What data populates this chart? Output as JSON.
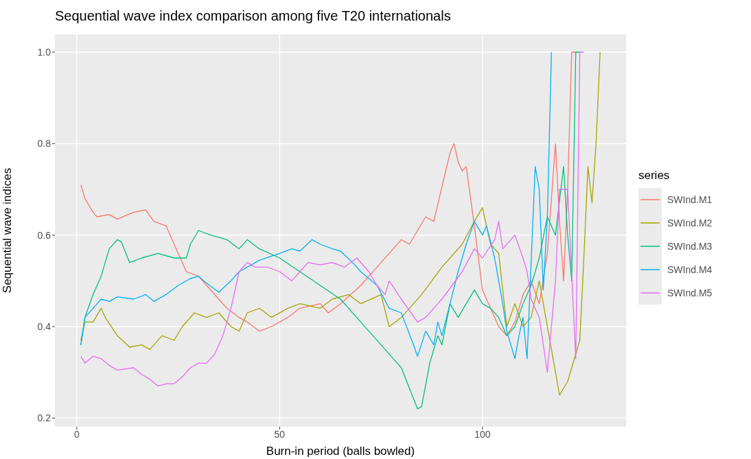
{
  "chart_data": {
    "type": "line",
    "title": "Sequential wave index comparison among five T20 internationals",
    "xlabel": "Burn-in period (balls bowled)",
    "ylabel": "Sequential wave indices",
    "legend_title": "series",
    "xlim": [
      -5.4,
      135.4
    ],
    "ylim": [
      0.181,
      1.039
    ],
    "xticks": [
      0,
      50,
      100
    ],
    "yticks": [
      {
        "value": 0.2,
        "label": "0.2"
      },
      {
        "value": 0.4,
        "label": "0.4"
      },
      {
        "value": 0.6,
        "label": "0.6"
      },
      {
        "value": 0.8,
        "label": "0.8"
      },
      {
        "value": 1.0,
        "label": "1.0"
      }
    ],
    "grid": true,
    "legend": "right",
    "marker": "none",
    "line_style": "solid",
    "series": [
      {
        "name": "SWInd.M1",
        "color": "#f8766d",
        "x": [
          1,
          2,
          4,
          5,
          8,
          10,
          14,
          17,
          19,
          22,
          24,
          27,
          30,
          32,
          35,
          37,
          40,
          42,
          45,
          48,
          52,
          55,
          60,
          62,
          65,
          70,
          75,
          80,
          82,
          86,
          88,
          92,
          93,
          94,
          95,
          96,
          98,
          100,
          102,
          104,
          106,
          108,
          110,
          112,
          114,
          116,
          117,
          118,
          119,
          120,
          121,
          122,
          123
        ],
        "values": [
          0.71,
          0.68,
          0.65,
          0.64,
          0.645,
          0.635,
          0.65,
          0.655,
          0.63,
          0.62,
          0.58,
          0.52,
          0.51,
          0.49,
          0.46,
          0.44,
          0.42,
          0.41,
          0.39,
          0.4,
          0.42,
          0.44,
          0.45,
          0.43,
          0.45,
          0.49,
          0.54,
          0.59,
          0.58,
          0.64,
          0.63,
          0.78,
          0.8,
          0.76,
          0.74,
          0.75,
          0.62,
          0.48,
          0.44,
          0.4,
          0.38,
          0.41,
          0.47,
          0.5,
          0.45,
          0.56,
          0.68,
          0.8,
          0.63,
          0.5,
          0.7,
          1.0,
          1.0
        ]
      },
      {
        "name": "SWInd.M2",
        "color": "#a3a500",
        "x": [
          1,
          2,
          4,
          6,
          7,
          10,
          13,
          16,
          18,
          21,
          24,
          26,
          29,
          32,
          35,
          38,
          40,
          42,
          45,
          48,
          52,
          55,
          60,
          63,
          67,
          70,
          75,
          77,
          80,
          85,
          90,
          95,
          98,
          100,
          102,
          104,
          106,
          108,
          110,
          112,
          114,
          116,
          118,
          119,
          121,
          124,
          125,
          126,
          127,
          128,
          129
        ],
        "values": [
          0.37,
          0.41,
          0.41,
          0.44,
          0.42,
          0.38,
          0.355,
          0.36,
          0.35,
          0.38,
          0.37,
          0.4,
          0.43,
          0.42,
          0.43,
          0.4,
          0.39,
          0.43,
          0.44,
          0.42,
          0.44,
          0.45,
          0.44,
          0.46,
          0.47,
          0.45,
          0.47,
          0.4,
          0.42,
          0.47,
          0.53,
          0.58,
          0.63,
          0.66,
          0.58,
          0.56,
          0.4,
          0.45,
          0.4,
          0.42,
          0.5,
          0.4,
          0.3,
          0.25,
          0.28,
          0.37,
          0.55,
          0.75,
          0.67,
          0.8,
          1.0
        ]
      },
      {
        "name": "SWInd.M3",
        "color": "#00bf7d",
        "x": [
          1,
          2,
          4,
          6,
          8,
          10,
          11,
          13,
          16,
          20,
          24,
          27,
          28,
          30,
          33,
          37,
          40,
          42,
          45,
          50,
          55,
          60,
          65,
          70,
          75,
          78,
          80,
          84,
          85,
          87,
          89,
          90,
          92,
          94,
          98,
          100,
          102,
          104,
          106,
          108,
          110,
          112,
          114,
          116,
          118,
          120,
          121,
          122,
          123,
          124
        ],
        "values": [
          0.36,
          0.42,
          0.47,
          0.51,
          0.57,
          0.59,
          0.585,
          0.54,
          0.55,
          0.56,
          0.55,
          0.55,
          0.58,
          0.61,
          0.6,
          0.59,
          0.57,
          0.59,
          0.57,
          0.55,
          0.52,
          0.49,
          0.46,
          0.41,
          0.36,
          0.33,
          0.31,
          0.22,
          0.225,
          0.32,
          0.38,
          0.36,
          0.45,
          0.42,
          0.48,
          0.45,
          0.44,
          0.42,
          0.38,
          0.4,
          0.45,
          0.49,
          0.55,
          0.64,
          0.6,
          0.75,
          0.6,
          0.5,
          1.0,
          1.0
        ]
      },
      {
        "name": "SWInd.M4",
        "color": "#00b0f6",
        "x": [
          1,
          2,
          4,
          6,
          8,
          10,
          14,
          17,
          19,
          22,
          25,
          28,
          30,
          32,
          35,
          38,
          40,
          45,
          50,
          53,
          55,
          58,
          60,
          63,
          65,
          68,
          70,
          74,
          77,
          80,
          83,
          84,
          86,
          88,
          89,
          90,
          92,
          94,
          96,
          98,
          100,
          101,
          103,
          105,
          106,
          108,
          109,
          110,
          111,
          113,
          114,
          115,
          116,
          117
        ],
        "values": [
          0.36,
          0.42,
          0.44,
          0.46,
          0.455,
          0.465,
          0.46,
          0.47,
          0.455,
          0.47,
          0.49,
          0.505,
          0.51,
          0.495,
          0.475,
          0.5,
          0.52,
          0.545,
          0.56,
          0.57,
          0.565,
          0.59,
          0.58,
          0.57,
          0.565,
          0.54,
          0.52,
          0.49,
          0.44,
          0.43,
          0.36,
          0.335,
          0.39,
          0.36,
          0.41,
          0.38,
          0.45,
          0.52,
          0.58,
          0.63,
          0.6,
          0.62,
          0.55,
          0.45,
          0.39,
          0.33,
          0.38,
          0.42,
          0.33,
          0.75,
          0.7,
          0.48,
          0.64,
          1.0
        ]
      },
      {
        "name": "SWInd.M5",
        "color": "#e76bf3",
        "x": [
          1,
          2,
          4,
          6,
          8,
          10,
          14,
          16,
          18,
          20,
          22,
          24,
          26,
          28,
          30,
          32,
          34,
          36,
          38,
          40,
          42,
          44,
          47,
          50,
          53,
          55,
          57,
          60,
          63,
          66,
          69,
          72,
          74,
          76,
          77,
          80,
          84,
          86,
          90,
          95,
          98,
          100,
          103,
          104,
          105,
          107,
          108,
          110,
          111,
          112,
          114,
          116,
          118,
          119,
          121,
          123,
          124,
          125
        ],
        "values": [
          0.335,
          0.32,
          0.335,
          0.33,
          0.315,
          0.305,
          0.31,
          0.295,
          0.285,
          0.27,
          0.275,
          0.275,
          0.29,
          0.31,
          0.32,
          0.32,
          0.34,
          0.38,
          0.44,
          0.52,
          0.54,
          0.53,
          0.53,
          0.52,
          0.5,
          0.52,
          0.54,
          0.535,
          0.54,
          0.53,
          0.55,
          0.52,
          0.49,
          0.47,
          0.5,
          0.46,
          0.41,
          0.42,
          0.46,
          0.52,
          0.57,
          0.55,
          0.59,
          0.63,
          0.57,
          0.59,
          0.6,
          0.55,
          0.52,
          0.46,
          0.42,
          0.3,
          0.5,
          0.7,
          0.7,
          0.33,
          1.0,
          1.0
        ]
      }
    ]
  }
}
